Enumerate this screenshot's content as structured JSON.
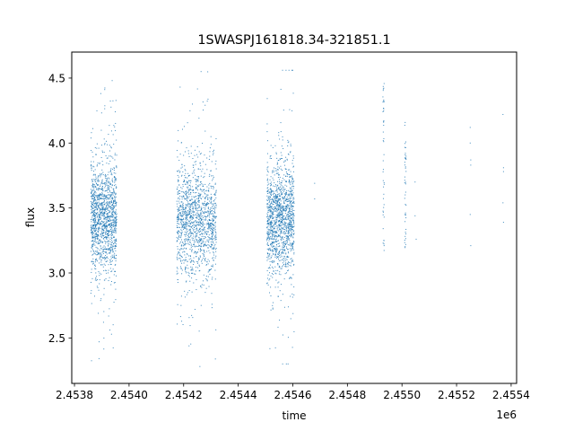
{
  "chart_data": {
    "type": "scatter",
    "title": "1SWASPJ161818.34-321851.1",
    "xlabel": "time",
    "ylabel": "flux",
    "x_offset_label": "1e6",
    "xlim": [
      2453790,
      2455420
    ],
    "ylim": [
      2.15,
      4.7
    ],
    "grid": false,
    "legend": "none",
    "xticks": [
      2453800,
      2454000,
      2454200,
      2454400,
      2454600,
      2454800,
      2455000,
      2455200,
      2455400
    ],
    "xtick_labels": [
      "2.4538",
      "2.4540",
      "2.4542",
      "2.4544",
      "2.4546",
      "2.4548",
      "2.4550",
      "2.4552",
      "2.4554"
    ],
    "yticks": [
      2.5,
      3.0,
      3.5,
      4.0,
      4.5
    ],
    "ytick_labels": [
      "2.5",
      "3.0",
      "3.5",
      "4.0",
      "4.5"
    ],
    "series_color": "#1f77b4",
    "clusters": [
      {
        "x_range": [
          2453860,
          2453955
        ],
        "median_flux": 3.43,
        "core_low": 3.05,
        "core_high": 3.85,
        "min_flux": 2.28,
        "max_flux": 4.58,
        "density": "high"
      },
      {
        "x_range": [
          2454175,
          2454320
        ],
        "median_flux": 3.4,
        "core_low": 3.02,
        "core_high": 3.85,
        "min_flux": 2.28,
        "max_flux": 4.55,
        "density": "high"
      },
      {
        "x_range": [
          2454505,
          2454605
        ],
        "median_flux": 3.42,
        "core_low": 3.05,
        "core_high": 3.85,
        "min_flux": 2.3,
        "max_flux": 4.56,
        "density": "high"
      },
      {
        "x_range": [
          2454930,
          2454935
        ],
        "median_flux": 3.55,
        "core_low": 3.15,
        "core_high": 4.2,
        "min_flux": 3.15,
        "max_flux": 4.5,
        "density": "low"
      },
      {
        "x_range": [
          2455010,
          2455015
        ],
        "median_flux": 3.5,
        "core_low": 3.12,
        "core_high": 4.17,
        "min_flux": 3.12,
        "max_flux": 4.17,
        "density": "low"
      }
    ],
    "sparse_points": [
      {
        "x": 2454680,
        "y": 3.69
      },
      {
        "x": 2454680,
        "y": 3.57
      },
      {
        "x": 2455048,
        "y": 3.7
      },
      {
        "x": 2455048,
        "y": 3.44
      },
      {
        "x": 2455052,
        "y": 3.26
      },
      {
        "x": 2455250,
        "y": 4.12
      },
      {
        "x": 2455250,
        "y": 4.0
      },
      {
        "x": 2455252,
        "y": 3.87
      },
      {
        "x": 2455252,
        "y": 3.83
      },
      {
        "x": 2455250,
        "y": 3.45
      },
      {
        "x": 2455252,
        "y": 3.21
      },
      {
        "x": 2455370,
        "y": 4.22
      },
      {
        "x": 2455372,
        "y": 3.81
      },
      {
        "x": 2455372,
        "y": 3.78
      },
      {
        "x": 2455370,
        "y": 3.54
      },
      {
        "x": 2455372,
        "y": 3.39
      }
    ]
  }
}
